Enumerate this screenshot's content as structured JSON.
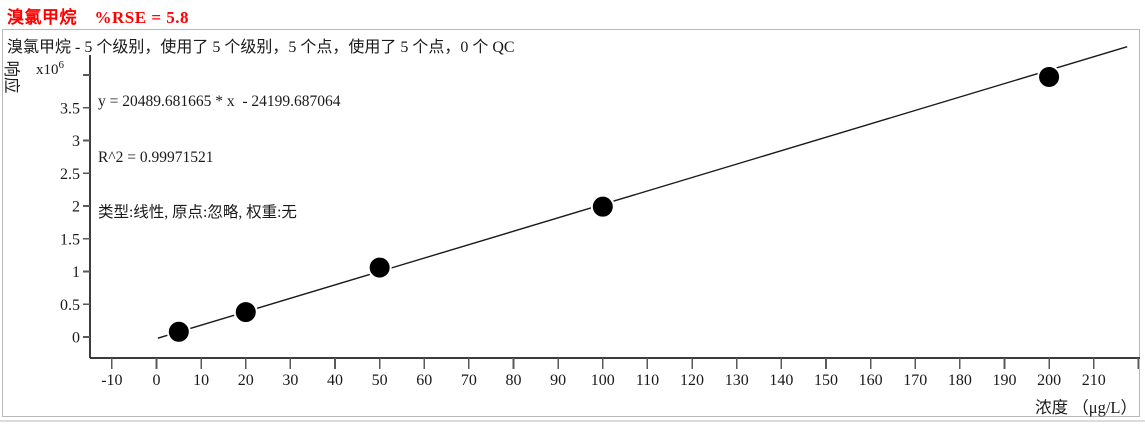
{
  "header": {
    "title": "溴氯甲烷　%RSE = 5.8",
    "compound": "溴氯甲烷",
    "rse": "%RSE = 5.8",
    "title_color": "#ff0000"
  },
  "info_line": "溴氯甲烷 - 5 个级别，使用了 5 个级别，5 个点，使用了 5 个点，0 个 QC",
  "equation_block": {
    "equation": "y = 20489.681665 * x  - 24199.687064",
    "r_squared": "R^2 = 0.99971521",
    "fit_settings": "类型:线性, 原点:忽略, 权重:无"
  },
  "y_axis": {
    "label": "响应",
    "multiplier_base": "x10",
    "multiplier_exp": "6"
  },
  "x_axis": {
    "label": "浓度 （μg/L）"
  },
  "chart_data": {
    "type": "scatter",
    "title": "溴氯甲烷 %RSE = 5.8",
    "xlabel": "浓度 （μg/L）",
    "ylabel": "响应 x10^6",
    "x_ticks": [
      -10,
      0,
      10,
      20,
      30,
      40,
      50,
      60,
      70,
      80,
      90,
      100,
      110,
      120,
      130,
      140,
      150,
      160,
      170,
      180,
      190,
      200,
      210
    ],
    "x_unlabeled_ticks": [
      220
    ],
    "y_ticks": [
      0,
      0.5,
      1,
      1.5,
      2,
      2.5,
      3,
      3.5
    ],
    "y_unlabeled_ticks": [
      4
    ],
    "xlim": [
      -15,
      221
    ],
    "ylim_e6": [
      -0.35,
      4.35
    ],
    "grid": false,
    "points": [
      {
        "x": 5,
        "y_e6": 0.08
      },
      {
        "x": 20,
        "y_e6": 0.38
      },
      {
        "x": 50,
        "y_e6": 1.06
      },
      {
        "x": 100,
        "y_e6": 1.99
      },
      {
        "x": 200,
        "y_e6": 3.97
      }
    ],
    "fit": {
      "type": "linear",
      "slope": 20489.681665,
      "intercept": -24199.687064,
      "r2": 0.99971521,
      "line_conc_start": 0.3,
      "line_conc_end": 217.5
    },
    "colors": {
      "point_fill": "#000000",
      "line": "#1a1a1a",
      "axis": "#3c3c3c",
      "tick": "#5a5a5a",
      "tick_label": "#1a1a1a"
    }
  }
}
